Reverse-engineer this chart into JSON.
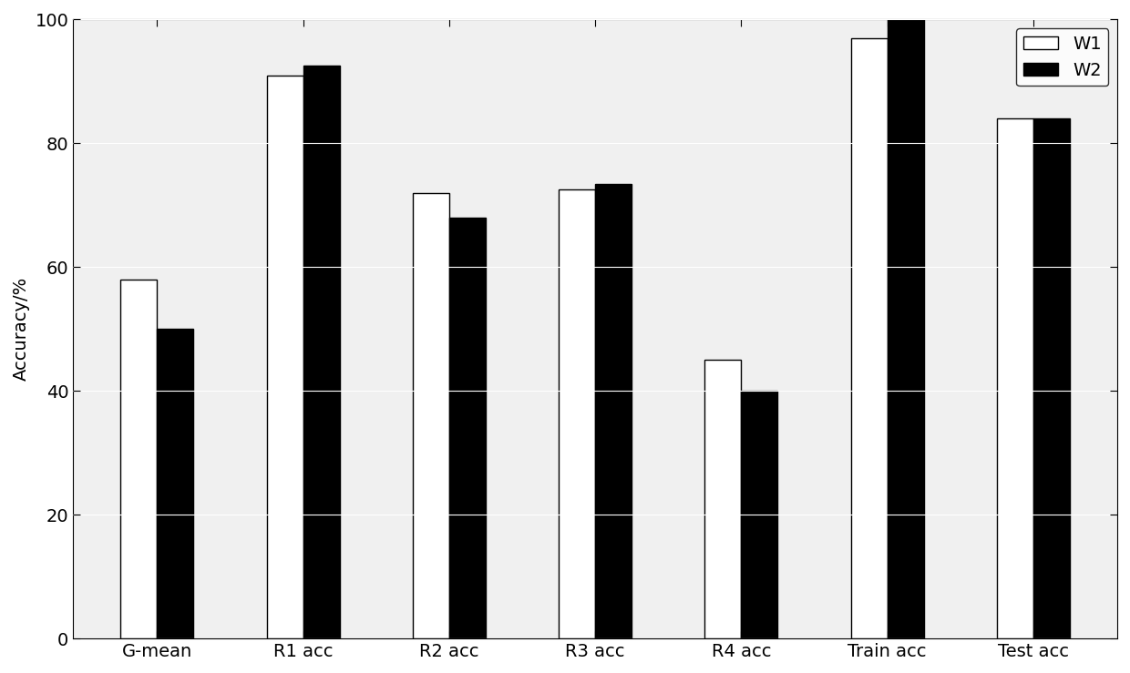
{
  "categories": [
    "G-mean",
    "R1 acc",
    "R2 acc",
    "R3 acc",
    "R4 acc",
    "Train acc",
    "Test acc"
  ],
  "W1": [
    58,
    91,
    72,
    72.5,
    45,
    97,
    84
  ],
  "W2": [
    50,
    92.5,
    68,
    73.5,
    40,
    100,
    84
  ],
  "ylabel": "Accuracy/%",
  "ylim": [
    0,
    100
  ],
  "yticks": [
    0,
    20,
    40,
    60,
    80,
    100
  ],
  "bar_width": 0.25,
  "W1_color": "#ffffff",
  "W2_color": "#000000",
  "W1_edgecolor": "#000000",
  "W2_edgecolor": "#000000",
  "axes_bg_color": "#f0f0f0",
  "background_color": "#ffffff",
  "legend_labels": [
    "W1",
    "W2"
  ],
  "font_size": 14,
  "grid_color": "#ffffff",
  "grid_linewidth": 0.8
}
